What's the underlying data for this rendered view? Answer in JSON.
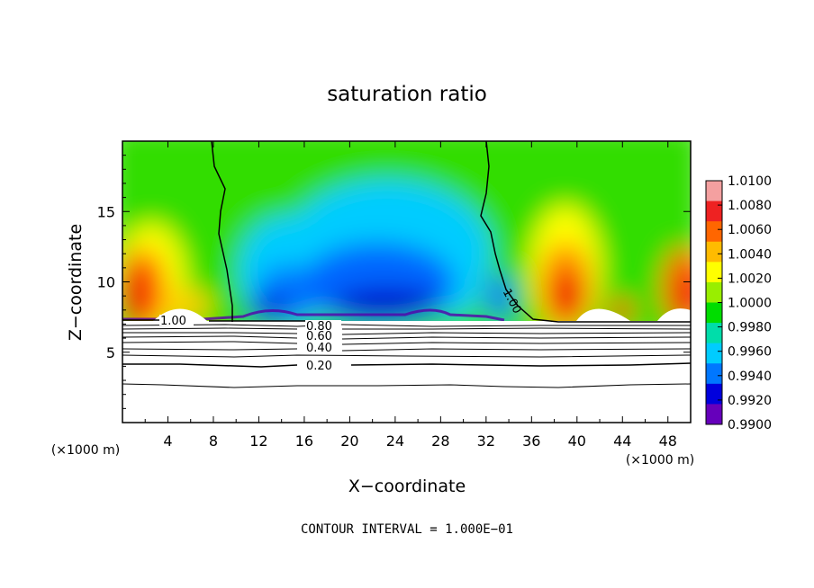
{
  "chart_data": {
    "type": "heatmap",
    "title": "saturation ratio",
    "xlabel": "X−coordinate",
    "ylabel": "Z−coordinate",
    "x_unit_label": "(×1000 m)",
    "x_unit_label_right": "(×1000 m)",
    "footer": "CONTOUR INTERVAL = 1.000E−01",
    "xlim": [
      0,
      50
    ],
    "ylim": [
      0,
      20
    ],
    "x_ticks": [
      4,
      8,
      12,
      16,
      20,
      24,
      28,
      32,
      36,
      40,
      44,
      48
    ],
    "x_tick_labels": [
      "4",
      "8",
      "12",
      "16",
      "20",
      "24",
      "28",
      "32",
      "36",
      "40",
      "44",
      "48"
    ],
    "y_ticks": [
      5,
      10,
      15
    ],
    "y_tick_labels": [
      "5",
      "10",
      "15"
    ],
    "colorbar": {
      "min": 0.99,
      "max": 1.01,
      "labels": [
        "1.0100",
        "1.0080",
        "1.0060",
        "1.0040",
        "1.0020",
        "1.0000",
        "0.9980",
        "0.9960",
        "0.9940",
        "0.9920",
        "0.9900"
      ],
      "colors": [
        "#f4a0a0",
        "#ee2222",
        "#ff6600",
        "#ffbb00",
        "#ffff00",
        "#99ee00",
        "#00dd00",
        "#00ddaa",
        "#00ccff",
        "#0077ff",
        "#0000dd",
        "#6600bb"
      ]
    },
    "cloud_base_z": 7.3,
    "contours": [
      {
        "level": 1.0,
        "label": "1.00"
      },
      {
        "level": 0.8,
        "label": "0.80"
      },
      {
        "level": 0.6,
        "label": "0.60"
      },
      {
        "level": 0.4,
        "label": "0.40"
      },
      {
        "level": 0.2,
        "label": "0.20"
      }
    ]
  }
}
